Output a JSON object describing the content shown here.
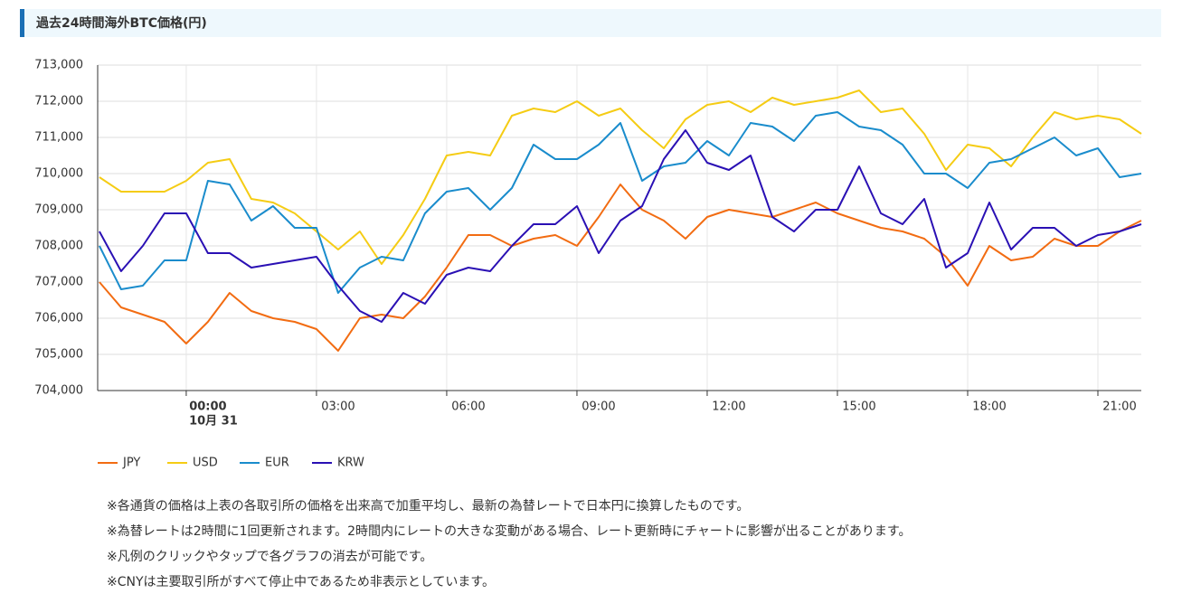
{
  "header": {
    "title": "過去24時間海外BTC価格(円)"
  },
  "chart_data": {
    "type": "line",
    "x": [
      -2,
      -1.5,
      -1,
      -0.5,
      0,
      0.5,
      1,
      1.5,
      2,
      2.5,
      3,
      3.5,
      4,
      4.5,
      5,
      5.5,
      6,
      6.5,
      7,
      7.5,
      8,
      8.5,
      9,
      9.5,
      10,
      10.5,
      11,
      11.5,
      12,
      12.5,
      13,
      13.5,
      14,
      14.5,
      15,
      15.5,
      16,
      16.5,
      17,
      17.5,
      18,
      18.5,
      19,
      19.5,
      20,
      20.5,
      21,
      21.5,
      22
    ],
    "series": [
      {
        "name": "JPY",
        "color": "#f26c12",
        "values": [
          707000,
          706300,
          706100,
          705900,
          705300,
          705900,
          706700,
          706200,
          706000,
          705900,
          705700,
          705100,
          706000,
          706100,
          706000,
          706600,
          707400,
          708300,
          708300,
          708000,
          708200,
          708300,
          708000,
          708800,
          709700,
          709000,
          708700,
          708200,
          708800,
          709000,
          708900,
          708800,
          709000,
          709200,
          708900,
          708700,
          708500,
          708400,
          708200,
          707700,
          706900,
          708000,
          707600,
          707700,
          708200,
          708000,
          708000,
          708400,
          708700
        ]
      },
      {
        "name": "USD",
        "color": "#f5cc14",
        "values": [
          709900,
          709500,
          709500,
          709500,
          709800,
          710300,
          710400,
          709300,
          709200,
          708900,
          708400,
          707900,
          708400,
          707500,
          708300,
          709300,
          710500,
          710600,
          710500,
          711600,
          711800,
          711700,
          712000,
          711600,
          711800,
          711200,
          710700,
          711500,
          711900,
          712000,
          711700,
          712100,
          711900,
          712000,
          712100,
          712300,
          711700,
          711800,
          711100,
          710100,
          710800,
          710700,
          710200,
          711000,
          711700,
          711500,
          711600,
          711500,
          711100
        ]
      },
      {
        "name": "EUR",
        "color": "#1a8ccc",
        "values": [
          708000,
          706800,
          706900,
          707600,
          707600,
          709800,
          709700,
          708700,
          709100,
          708500,
          708500,
          706700,
          707400,
          707700,
          707600,
          708900,
          709500,
          709600,
          709000,
          709600,
          710800,
          710400,
          710400,
          710800,
          711400,
          709800,
          710200,
          710300,
          710900,
          710500,
          711400,
          711300,
          710900,
          711600,
          711700,
          711300,
          711200,
          710800,
          710000,
          710000,
          709600,
          710300,
          710400,
          710700,
          711000,
          710500,
          710700,
          709900,
          710000
        ]
      },
      {
        "name": "KRW",
        "color": "#2a10b4",
        "values": [
          708400,
          707300,
          708000,
          708900,
          708900,
          707800,
          707800,
          707400,
          707500,
          707600,
          707700,
          706900,
          706200,
          705900,
          706700,
          706400,
          707200,
          707400,
          707300,
          708000,
          708600,
          708600,
          709100,
          707800,
          708700,
          709100,
          710400,
          711200,
          710300,
          710100,
          710500,
          708800,
          708400,
          709000,
          709000,
          710200,
          708900,
          708600,
          709300,
          707400,
          707800,
          709200,
          707900,
          708500,
          708500,
          708000,
          708300,
          708400,
          708600
        ]
      }
    ],
    "xlim": [
      -2.04,
      22
    ],
    "xticks": [
      {
        "value": 0,
        "label": "00:00"
      },
      {
        "value": 3,
        "label": "03:00"
      },
      {
        "value": 6,
        "label": "06:00"
      },
      {
        "value": 9,
        "label": "09:00"
      },
      {
        "value": 12,
        "label": "12:00"
      },
      {
        "value": 15,
        "label": "15:00"
      },
      {
        "value": 18,
        "label": "18:00"
      },
      {
        "value": 21,
        "label": "21:00"
      }
    ],
    "xtick_date": "10月 31",
    "ylim": [
      704000,
      713000
    ],
    "yticks": [
      {
        "value": 704000,
        "label": "704,000"
      },
      {
        "value": 705000,
        "label": "705,000"
      },
      {
        "value": 706000,
        "label": "706,000"
      },
      {
        "value": 707000,
        "label": "707,000"
      },
      {
        "value": 708000,
        "label": "708,000"
      },
      {
        "value": 709000,
        "label": "709,000"
      },
      {
        "value": 710000,
        "label": "710,000"
      },
      {
        "value": 711000,
        "label": "711,000"
      },
      {
        "value": 712000,
        "label": "712,000"
      },
      {
        "value": 713000,
        "label": "713,000"
      }
    ],
    "grid": true,
    "legend": "bottom"
  },
  "notes": [
    "※各通貨の価格は上表の各取引所の価格を出来高で加重平均し、最新の為替レートで日本円に換算したものです。",
    "※為替レートは2時間に1回更新されます。2時間内にレートの大きな変動がある場合、レート更新時にチャートに影響が出ることがあります。",
    "※凡例のクリックやタップで各グラフの消去が可能です。",
    "※CNYは主要取引所がすべて停止中であるため非表示としています。"
  ]
}
